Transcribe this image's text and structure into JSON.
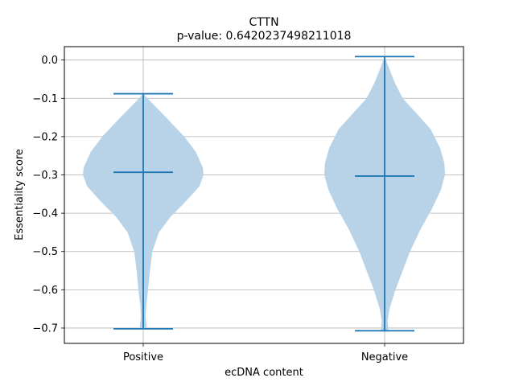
{
  "chart_data": {
    "type": "violin",
    "title": "CTTN",
    "subtitle": "p-value: 0.6420237498211018",
    "xlabel": "ecDNA content",
    "ylabel": "Essentiality score",
    "categories": [
      "Positive",
      "Negative"
    ],
    "ylim": [
      -0.74,
      0.035
    ],
    "yticks": [
      0.0,
      -0.1,
      -0.2,
      -0.3,
      -0.4,
      -0.5,
      -0.6,
      -0.7
    ],
    "ytick_labels": [
      "0.0",
      "−0.1",
      "−0.2",
      "−0.3",
      "−0.4",
      "−0.5",
      "−0.6",
      "−0.7"
    ],
    "grid": true,
    "colors": {
      "violin_fill": "#b8d3e8",
      "line": "#1f77b4",
      "grid": "#b0b0b0"
    },
    "violins": [
      {
        "category": "Positive",
        "max": -0.088,
        "median": -0.293,
        "min": -0.702,
        "profile": [
          [
            -0.088,
            0.0
          ],
          [
            -0.11,
            0.13
          ],
          [
            -0.15,
            0.38
          ],
          [
            -0.2,
            0.68
          ],
          [
            -0.24,
            0.87
          ],
          [
            -0.28,
            0.985
          ],
          [
            -0.3,
            1.0
          ],
          [
            -0.33,
            0.93
          ],
          [
            -0.37,
            0.7
          ],
          [
            -0.41,
            0.45
          ],
          [
            -0.45,
            0.26
          ],
          [
            -0.5,
            0.15
          ],
          [
            -0.55,
            0.11
          ],
          [
            -0.6,
            0.08
          ],
          [
            -0.64,
            0.05
          ],
          [
            -0.67,
            0.04
          ],
          [
            -0.702,
            0.06
          ]
        ]
      },
      {
        "category": "Negative",
        "max": 0.009,
        "median": -0.303,
        "min": -0.707,
        "profile": [
          [
            0.009,
            0.0
          ],
          [
            -0.02,
            0.07
          ],
          [
            -0.06,
            0.17
          ],
          [
            -0.1,
            0.3
          ],
          [
            -0.14,
            0.53
          ],
          [
            -0.18,
            0.76
          ],
          [
            -0.23,
            0.92
          ],
          [
            -0.27,
            0.99
          ],
          [
            -0.3,
            1.0
          ],
          [
            -0.34,
            0.93
          ],
          [
            -0.39,
            0.78
          ],
          [
            -0.44,
            0.6
          ],
          [
            -0.5,
            0.42
          ],
          [
            -0.55,
            0.3
          ],
          [
            -0.6,
            0.18
          ],
          [
            -0.65,
            0.08
          ],
          [
            -0.68,
            0.05
          ],
          [
            -0.707,
            0.06
          ]
        ]
      }
    ]
  }
}
